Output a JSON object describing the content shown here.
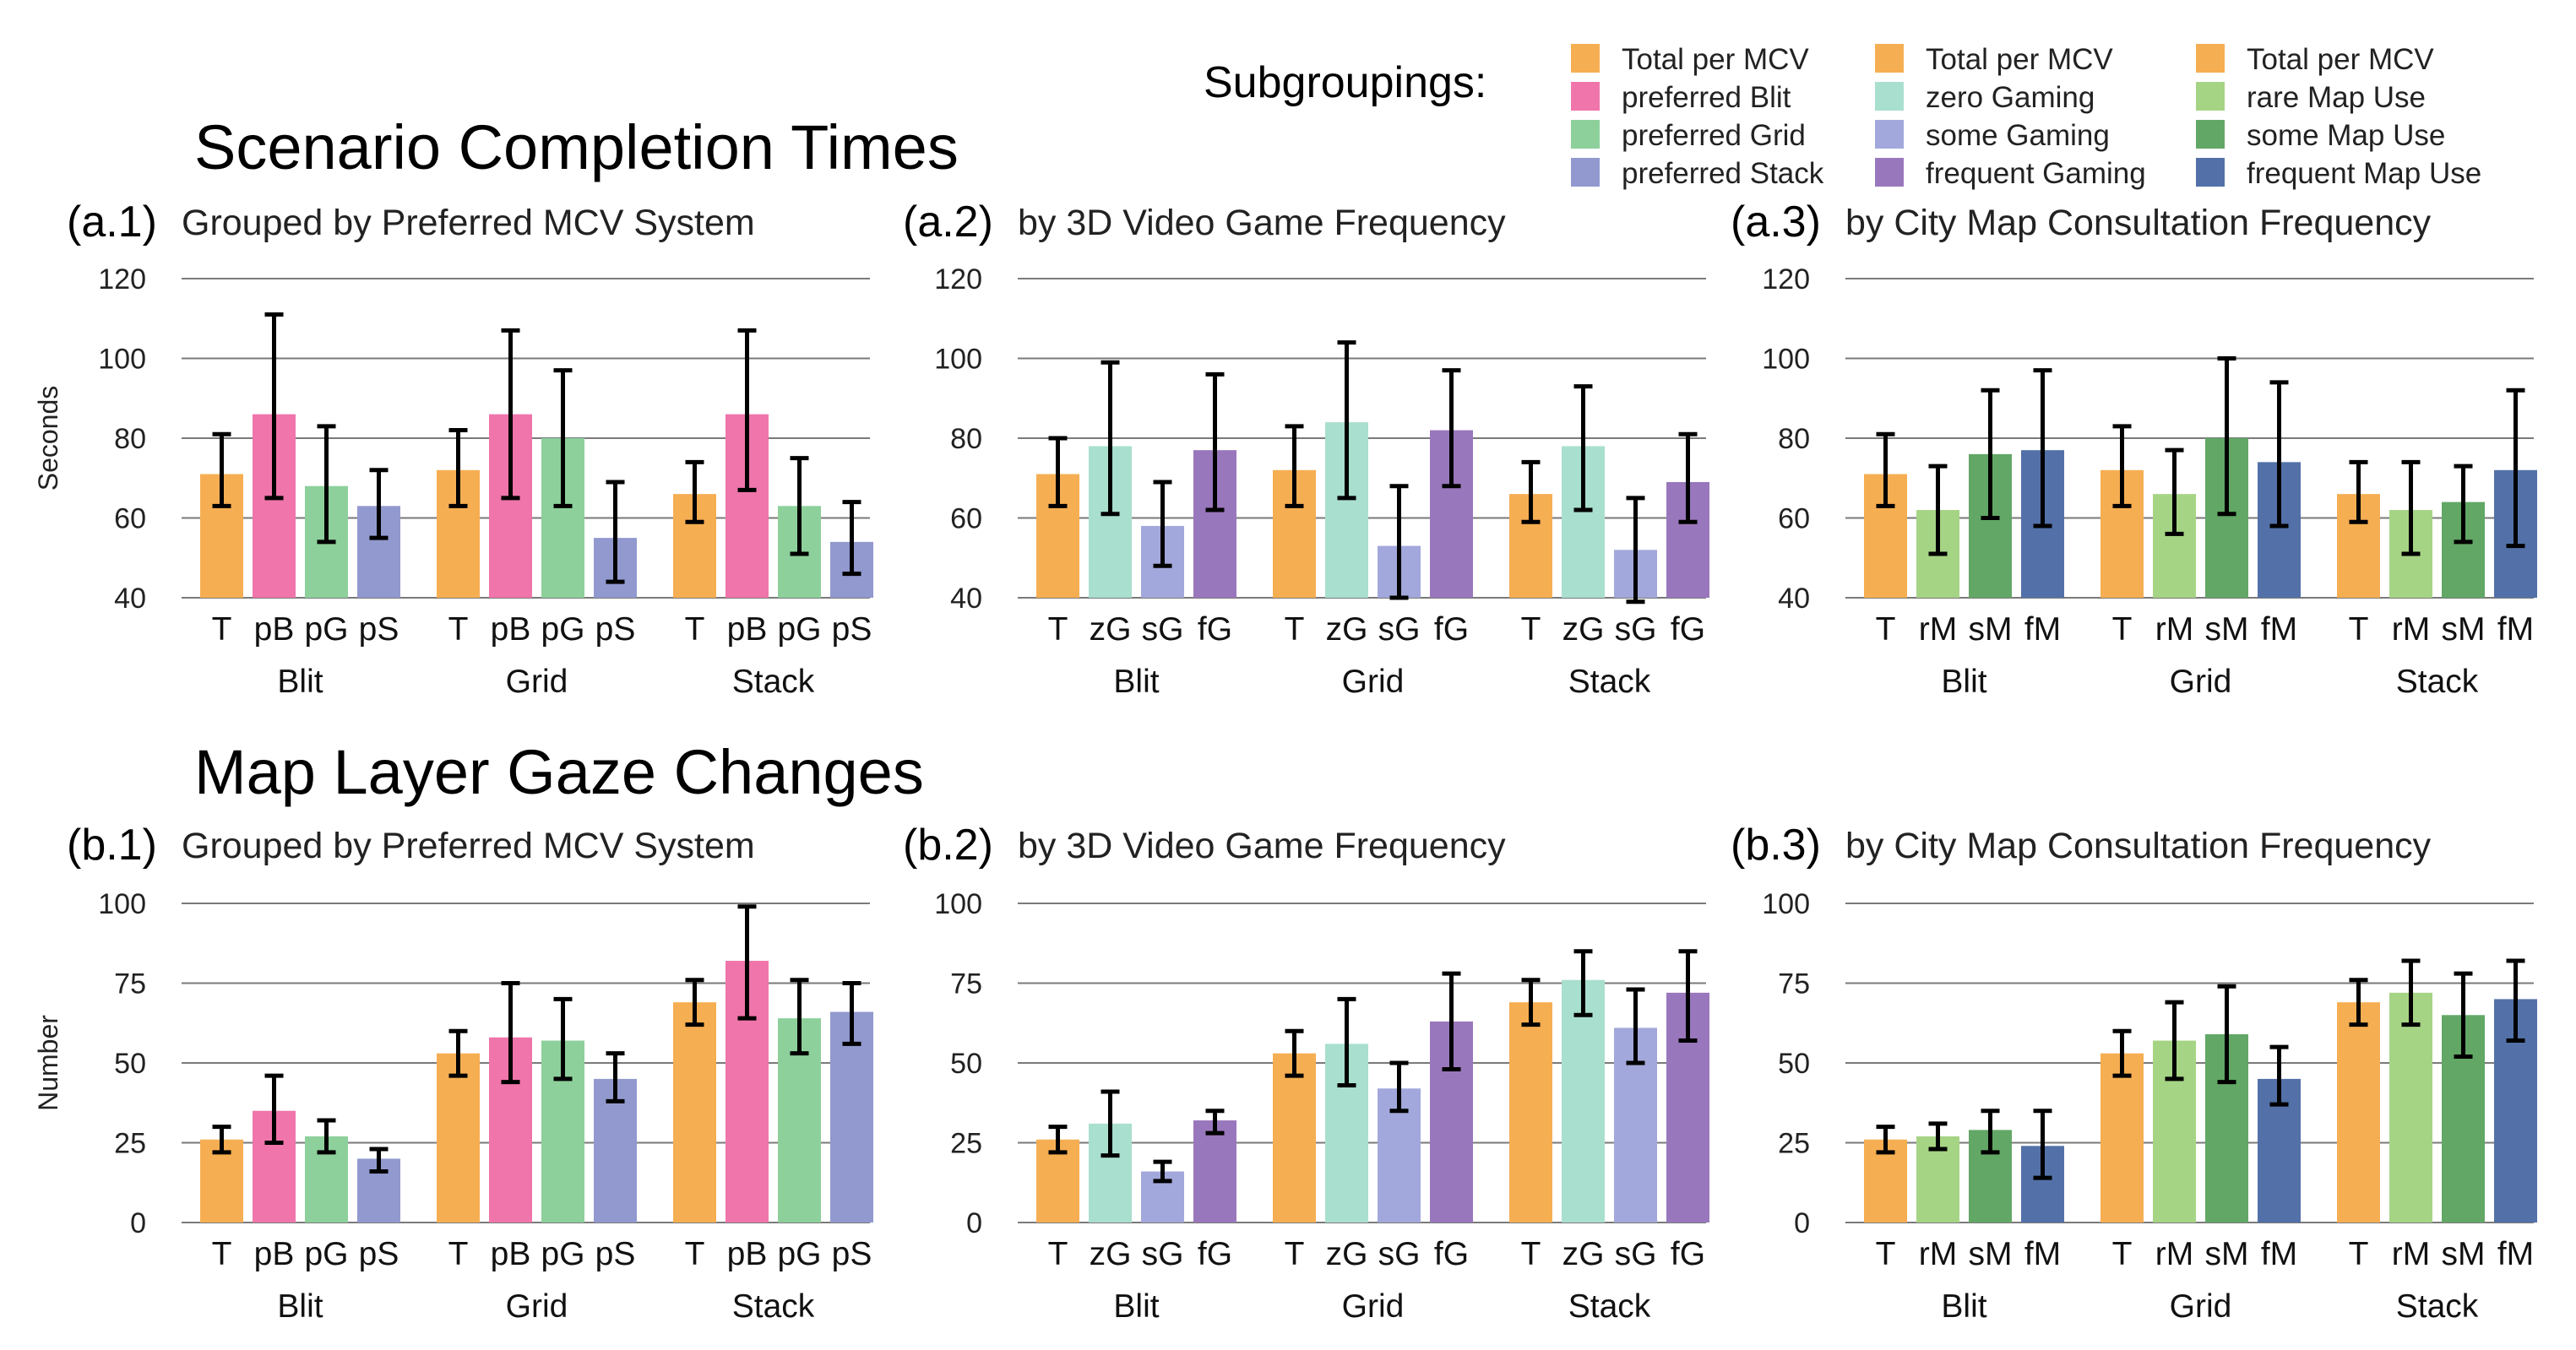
{
  "colors": {
    "T": "#F6AE52",
    "pB": "#EF75AA",
    "pG": "#8DD09B",
    "pS": "#9199CF",
    "zG": "#A9DFCE",
    "sG": "#A2A8DB",
    "fG": "#9977BC",
    "rM": "#A6D485",
    "sM": "#62A766",
    "fM": "#5371A8"
  },
  "headings": {
    "scenario": "Scenario Completion Times",
    "gaze": "Map Layer Gaze Changes"
  },
  "legend": {
    "title": "Subgroupings:",
    "columns": [
      [
        {
          "key": "T",
          "label": "Total per MCV"
        },
        {
          "key": "pB",
          "label": "preferred Blit"
        },
        {
          "key": "pG",
          "label": "preferred Grid"
        },
        {
          "key": "pS",
          "label": "preferred Stack"
        }
      ],
      [
        {
          "key": "T",
          "label": "Total per MCV"
        },
        {
          "key": "zG",
          "label": "zero Gaming"
        },
        {
          "key": "sG",
          "label": "some Gaming"
        },
        {
          "key": "fG",
          "label": "frequent Gaming"
        }
      ],
      [
        {
          "key": "T",
          "label": "Total per MCV"
        },
        {
          "key": "rM",
          "label": "rare Map Use"
        },
        {
          "key": "sM",
          "label": "some Map Use"
        },
        {
          "key": "fM",
          "label": "frequent Map Use"
        }
      ]
    ]
  },
  "chart_data": [
    {
      "id": "a1",
      "type": "bar",
      "label": "(a.1)",
      "title": "Grouped by Preferred MCV System",
      "ylabel": "Seconds",
      "ylim": [
        40,
        120
      ],
      "yticks": [
        40,
        60,
        80,
        100,
        120
      ],
      "groups": [
        "Blit",
        "Grid",
        "Stack"
      ],
      "subgroups": [
        "T",
        "pB",
        "pG",
        "pS"
      ],
      "values": [
        [
          71,
          86,
          68,
          63
        ],
        [
          72,
          86,
          80,
          55
        ],
        [
          66,
          86,
          63,
          54
        ]
      ],
      "errors": [
        [
          [
            63,
            81
          ],
          [
            65,
            111
          ],
          [
            54,
            83
          ],
          [
            55,
            72
          ]
        ],
        [
          [
            63,
            82
          ],
          [
            65,
            107
          ],
          [
            63,
            97
          ],
          [
            44,
            69
          ]
        ],
        [
          [
            59,
            74
          ],
          [
            67,
            107
          ],
          [
            51,
            75
          ],
          [
            46,
            64
          ]
        ]
      ]
    },
    {
      "id": "a2",
      "type": "bar",
      "label": "(a.2)",
      "title": "by 3D Video Game Frequency",
      "ylabel": "",
      "ylim": [
        40,
        120
      ],
      "yticks": [
        40,
        60,
        80,
        100,
        120
      ],
      "groups": [
        "Blit",
        "Grid",
        "Stack"
      ],
      "subgroups": [
        "T",
        "zG",
        "sG",
        "fG"
      ],
      "values": [
        [
          71,
          78,
          58,
          77
        ],
        [
          72,
          84,
          53,
          82
        ],
        [
          66,
          78,
          52,
          69
        ]
      ],
      "errors": [
        [
          [
            63,
            80
          ],
          [
            61,
            99
          ],
          [
            48,
            69
          ],
          [
            62,
            96
          ]
        ],
        [
          [
            63,
            83
          ],
          [
            65,
            104
          ],
          [
            40,
            68
          ],
          [
            68,
            97
          ]
        ],
        [
          [
            59,
            74
          ],
          [
            62,
            93
          ],
          [
            39,
            65
          ],
          [
            59,
            81
          ]
        ]
      ]
    },
    {
      "id": "a3",
      "type": "bar",
      "label": "(a.3)",
      "title": "by City Map Consultation Frequency",
      "ylabel": "",
      "ylim": [
        40,
        120
      ],
      "yticks": [
        40,
        60,
        80,
        100,
        120
      ],
      "groups": [
        "Blit",
        "Grid",
        "Stack"
      ],
      "subgroups": [
        "T",
        "rM",
        "sM",
        "fM"
      ],
      "values": [
        [
          71,
          62,
          76,
          77
        ],
        [
          72,
          66,
          80,
          74
        ],
        [
          66,
          62,
          64,
          72
        ]
      ],
      "errors": [
        [
          [
            63,
            81
          ],
          [
            51,
            73
          ],
          [
            60,
            92
          ],
          [
            58,
            97
          ]
        ],
        [
          [
            63,
            83
          ],
          [
            56,
            77
          ],
          [
            61,
            100
          ],
          [
            58,
            94
          ]
        ],
        [
          [
            59,
            74
          ],
          [
            51,
            74
          ],
          [
            54,
            73
          ],
          [
            53,
            92
          ]
        ]
      ]
    },
    {
      "id": "b1",
      "type": "bar",
      "label": "(b.1)",
      "title": "Grouped by Preferred MCV System",
      "ylabel": "Number",
      "ylim": [
        0,
        100
      ],
      "yticks": [
        0,
        25,
        50,
        75,
        100
      ],
      "groups": [
        "Blit",
        "Grid",
        "Stack"
      ],
      "subgroups": [
        "T",
        "pB",
        "pG",
        "pS"
      ],
      "values": [
        [
          26,
          35,
          27,
          20
        ],
        [
          53,
          58,
          57,
          45
        ],
        [
          69,
          82,
          64,
          66
        ]
      ],
      "errors": [
        [
          [
            22,
            30
          ],
          [
            25,
            46
          ],
          [
            22,
            32
          ],
          [
            16,
            23
          ]
        ],
        [
          [
            46,
            60
          ],
          [
            44,
            75
          ],
          [
            45,
            70
          ],
          [
            38,
            53
          ]
        ],
        [
          [
            62,
            76
          ],
          [
            64,
            99
          ],
          [
            53,
            76
          ],
          [
            56,
            75
          ]
        ]
      ]
    },
    {
      "id": "b2",
      "type": "bar",
      "label": "(b.2)",
      "title": "by 3D Video Game Frequency",
      "ylabel": "",
      "ylim": [
        0,
        100
      ],
      "yticks": [
        0,
        25,
        50,
        75,
        100
      ],
      "groups": [
        "Blit",
        "Grid",
        "Stack"
      ],
      "subgroups": [
        "T",
        "zG",
        "sG",
        "fG"
      ],
      "values": [
        [
          26,
          31,
          16,
          32
        ],
        [
          53,
          56,
          42,
          63
        ],
        [
          69,
          76,
          61,
          72
        ]
      ],
      "errors": [
        [
          [
            22,
            30
          ],
          [
            21,
            41
          ],
          [
            13,
            19
          ],
          [
            28,
            35
          ]
        ],
        [
          [
            46,
            60
          ],
          [
            43,
            70
          ],
          [
            35,
            50
          ],
          [
            48,
            78
          ]
        ],
        [
          [
            62,
            76
          ],
          [
            65,
            85
          ],
          [
            50,
            73
          ],
          [
            57,
            85
          ]
        ]
      ]
    },
    {
      "id": "b3",
      "type": "bar",
      "label": "(b.3)",
      "title": "by City Map Consultation Frequency",
      "ylabel": "",
      "ylim": [
        0,
        100
      ],
      "yticks": [
        0,
        25,
        50,
        75,
        100
      ],
      "groups": [
        "Blit",
        "Grid",
        "Stack"
      ],
      "subgroups": [
        "T",
        "rM",
        "sM",
        "fM"
      ],
      "values": [
        [
          26,
          27,
          29,
          24
        ],
        [
          53,
          57,
          59,
          45
        ],
        [
          69,
          72,
          65,
          70
        ]
      ],
      "errors": [
        [
          [
            22,
            30
          ],
          [
            23,
            31
          ],
          [
            22,
            35
          ],
          [
            14,
            35
          ]
        ],
        [
          [
            46,
            60
          ],
          [
            45,
            69
          ],
          [
            44,
            74
          ],
          [
            37,
            55
          ]
        ],
        [
          [
            62,
            76
          ],
          [
            62,
            82
          ],
          [
            52,
            78
          ],
          [
            57,
            82
          ]
        ]
      ]
    }
  ]
}
